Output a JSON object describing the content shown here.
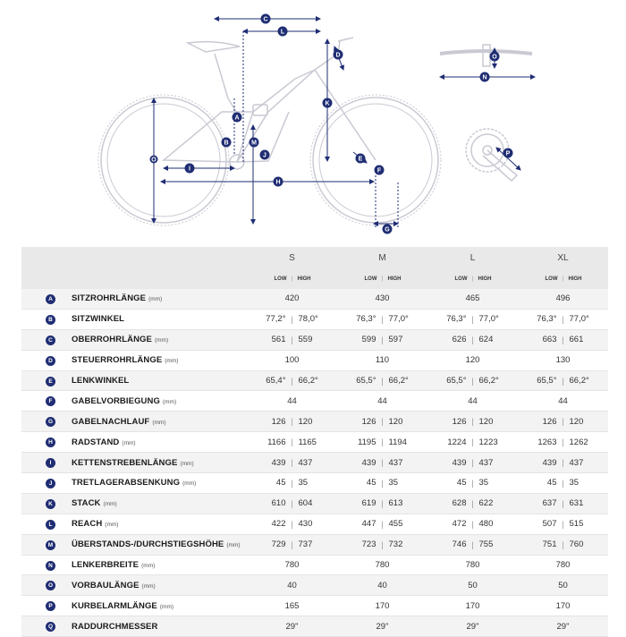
{
  "colors": {
    "accent": "#1f2d73",
    "frame_line": "#c9c9d3",
    "row_alt": "#f3f3f3",
    "header_bg": "#e9e9e9"
  },
  "diagram": {
    "labels": [
      "C",
      "L",
      "D",
      "O",
      "N",
      "A",
      "K",
      "B",
      "M",
      "J",
      "E",
      "F",
      "I",
      "H",
      "G",
      "P"
    ]
  },
  "table": {
    "sizes": [
      "S",
      "M",
      "L",
      "XL"
    ],
    "low_label": "LOW",
    "high_label": "HIGH",
    "rows": [
      {
        "letter": "A",
        "name": "SITZROHRLÄNGE",
        "unit": "(mm)",
        "values": [
          [
            "420"
          ],
          [
            "430"
          ],
          [
            "465"
          ],
          [
            "496"
          ]
        ]
      },
      {
        "letter": "B",
        "name": "SITZWINKEL",
        "unit": "",
        "values": [
          [
            "77,2°",
            "78,0°"
          ],
          [
            "76,3°",
            "77,0°"
          ],
          [
            "76,3°",
            "77,0°"
          ],
          [
            "76,3°",
            "77,0°"
          ]
        ]
      },
      {
        "letter": "C",
        "name": "OBERROHRLÄNGE",
        "unit": "(mm)",
        "values": [
          [
            "561",
            "559"
          ],
          [
            "599",
            "597"
          ],
          [
            "626",
            "624"
          ],
          [
            "663",
            "661"
          ]
        ]
      },
      {
        "letter": "D",
        "name": "STEUERROHRLÄNGE",
        "unit": "(mm)",
        "values": [
          [
            "100"
          ],
          [
            "110"
          ],
          [
            "120"
          ],
          [
            "130"
          ]
        ]
      },
      {
        "letter": "E",
        "name": "LENKWINKEL",
        "unit": "",
        "values": [
          [
            "65,4°",
            "66,2°"
          ],
          [
            "65,5°",
            "66,2°"
          ],
          [
            "65,5°",
            "66,2°"
          ],
          [
            "65,5°",
            "66,2°"
          ]
        ]
      },
      {
        "letter": "F",
        "name": "GABELVORBIEGUNG",
        "unit": "(mm)",
        "values": [
          [
            "44"
          ],
          [
            "44"
          ],
          [
            "44"
          ],
          [
            "44"
          ]
        ]
      },
      {
        "letter": "G",
        "name": "GABELNACHLAUF",
        "unit": "(mm)",
        "values": [
          [
            "126",
            "120"
          ],
          [
            "126",
            "120"
          ],
          [
            "126",
            "120"
          ],
          [
            "126",
            "120"
          ]
        ]
      },
      {
        "letter": "H",
        "name": "RADSTAND",
        "unit": "(mm)",
        "values": [
          [
            "1166",
            "1165"
          ],
          [
            "1195",
            "1194"
          ],
          [
            "1224",
            "1223"
          ],
          [
            "1263",
            "1262"
          ]
        ]
      },
      {
        "letter": "I",
        "name": "KETTENSTREBENLÄNGE",
        "unit": "(mm)",
        "values": [
          [
            "439",
            "437"
          ],
          [
            "439",
            "437"
          ],
          [
            "439",
            "437"
          ],
          [
            "439",
            "437"
          ]
        ]
      },
      {
        "letter": "J",
        "name": "TRETLAGERABSENKUNG",
        "unit": "(mm)",
        "values": [
          [
            "45",
            "35"
          ],
          [
            "45",
            "35"
          ],
          [
            "45",
            "35"
          ],
          [
            "45",
            "35"
          ]
        ]
      },
      {
        "letter": "K",
        "name": "STACK",
        "unit": "(mm)",
        "values": [
          [
            "610",
            "604"
          ],
          [
            "619",
            "613"
          ],
          [
            "628",
            "622"
          ],
          [
            "637",
            "631"
          ]
        ]
      },
      {
        "letter": "L",
        "name": "REACH",
        "unit": "(mm)",
        "values": [
          [
            "422",
            "430"
          ],
          [
            "447",
            "455"
          ],
          [
            "472",
            "480"
          ],
          [
            "507",
            "515"
          ]
        ]
      },
      {
        "letter": "M",
        "name": "ÜBERSTANDS-/DURCHSTIEGSHÖHE",
        "unit": "(mm)",
        "values": [
          [
            "729",
            "737"
          ],
          [
            "723",
            "732"
          ],
          [
            "746",
            "755"
          ],
          [
            "751",
            "760"
          ]
        ]
      },
      {
        "letter": "N",
        "name": "LENKERBREITE",
        "unit": "(mm)",
        "values": [
          [
            "780"
          ],
          [
            "780"
          ],
          [
            "780"
          ],
          [
            "780"
          ]
        ]
      },
      {
        "letter": "O",
        "name": "VORBAULÄNGE",
        "unit": "(mm)",
        "values": [
          [
            "40"
          ],
          [
            "40"
          ],
          [
            "50"
          ],
          [
            "50"
          ]
        ]
      },
      {
        "letter": "P",
        "name": "KURBELARMLÄNGE",
        "unit": "(mm)",
        "values": [
          [
            "165"
          ],
          [
            "170"
          ],
          [
            "170"
          ],
          [
            "170"
          ]
        ]
      },
      {
        "letter": "Q",
        "name": "RADDURCHMESSER",
        "unit": "",
        "values": [
          [
            "29\""
          ],
          [
            "29\""
          ],
          [
            "29\""
          ],
          [
            "29\""
          ]
        ]
      }
    ]
  }
}
